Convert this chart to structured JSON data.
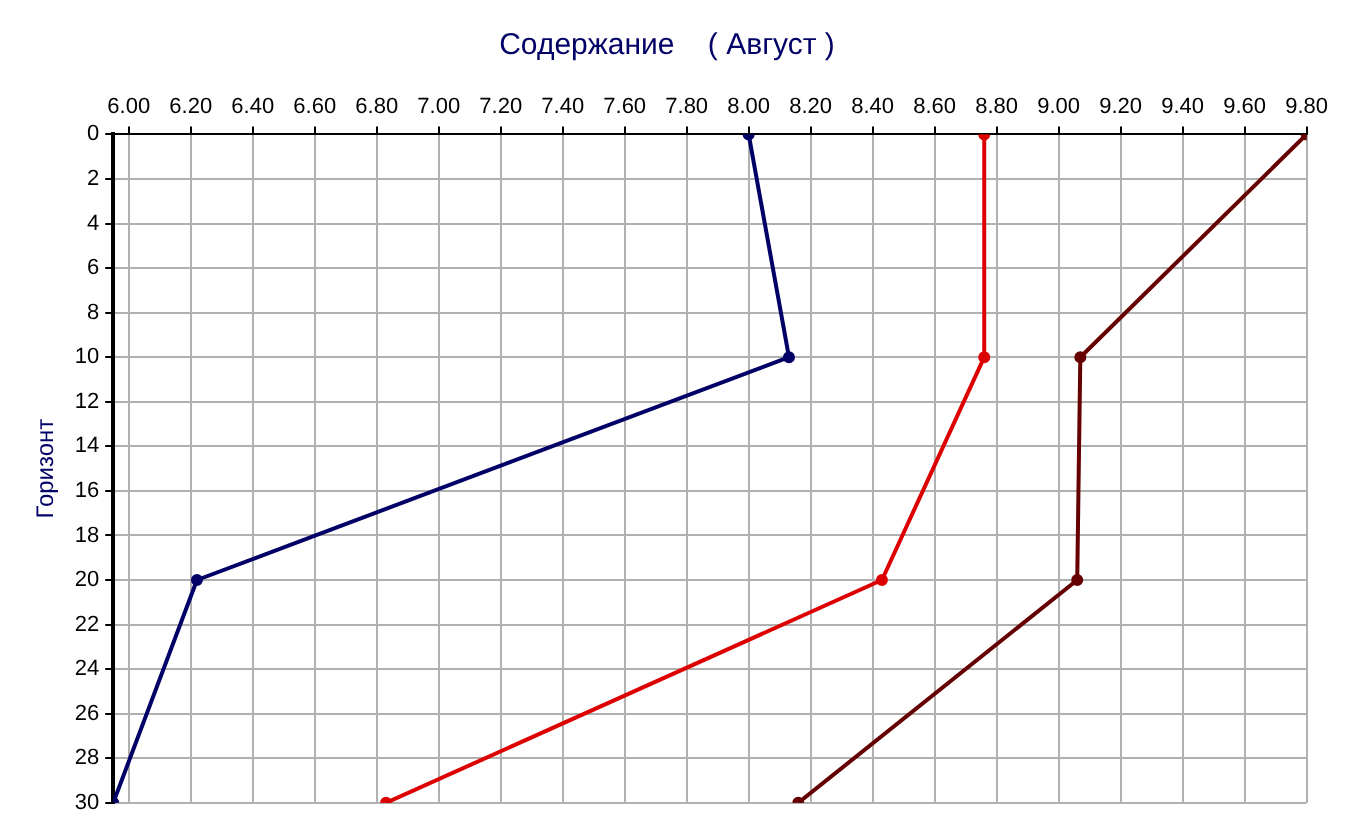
{
  "chart_data": {
    "type": "line",
    "title": "Содержание    ( Август )",
    "ylabel": "Горизонт",
    "xlim": [
      5.95,
      9.8
    ],
    "xticks": [
      {
        "value": 6,
        "label": "6.00"
      },
      {
        "value": 6.2,
        "label": "6.20"
      },
      {
        "value": 6.4,
        "label": "6.40"
      },
      {
        "value": 6.6,
        "label": "6.60"
      },
      {
        "value": 6.8,
        "label": "6.80"
      },
      {
        "value": 7,
        "label": "7.00"
      },
      {
        "value": 7.2,
        "label": "7.20"
      },
      {
        "value": 7.4,
        "label": "7.40"
      },
      {
        "value": 7.6,
        "label": "7.60"
      },
      {
        "value": 7.8,
        "label": "7.80"
      },
      {
        "value": 8,
        "label": "8.00"
      },
      {
        "value": 8.2,
        "label": "8.20"
      },
      {
        "value": 8.4,
        "label": "8.40"
      },
      {
        "value": 8.6,
        "label": "8.60"
      },
      {
        "value": 8.8,
        "label": "8.80"
      },
      {
        "value": 9,
        "label": "9.00"
      },
      {
        "value": 9.2,
        "label": "9.20"
      },
      {
        "value": 9.4,
        "label": "9.40"
      },
      {
        "value": 9.6,
        "label": "9.60"
      },
      {
        "value": 9.8,
        "label": "9.80"
      }
    ],
    "ylim": [
      30,
      0
    ],
    "yticks": [
      0,
      2,
      4,
      6,
      8,
      10,
      12,
      14,
      16,
      18,
      20,
      22,
      24,
      26,
      28,
      30
    ],
    "grid": true,
    "legend": false,
    "marker": "circle",
    "line_style": "solid",
    "series": [
      {
        "color": "#000066",
        "x": [
          8.0,
          8.13,
          6.22,
          5.95
        ],
        "values": [
          0,
          10,
          20,
          30
        ]
      },
      {
        "color": "#dd0000",
        "x": [
          8.76,
          8.76,
          8.43,
          6.83
        ],
        "values": [
          0,
          10,
          20,
          30
        ]
      },
      {
        "color": "#660000",
        "x": [
          9.8,
          9.07,
          9.06,
          8.16
        ],
        "values": [
          0,
          10,
          20,
          30
        ]
      }
    ]
  }
}
